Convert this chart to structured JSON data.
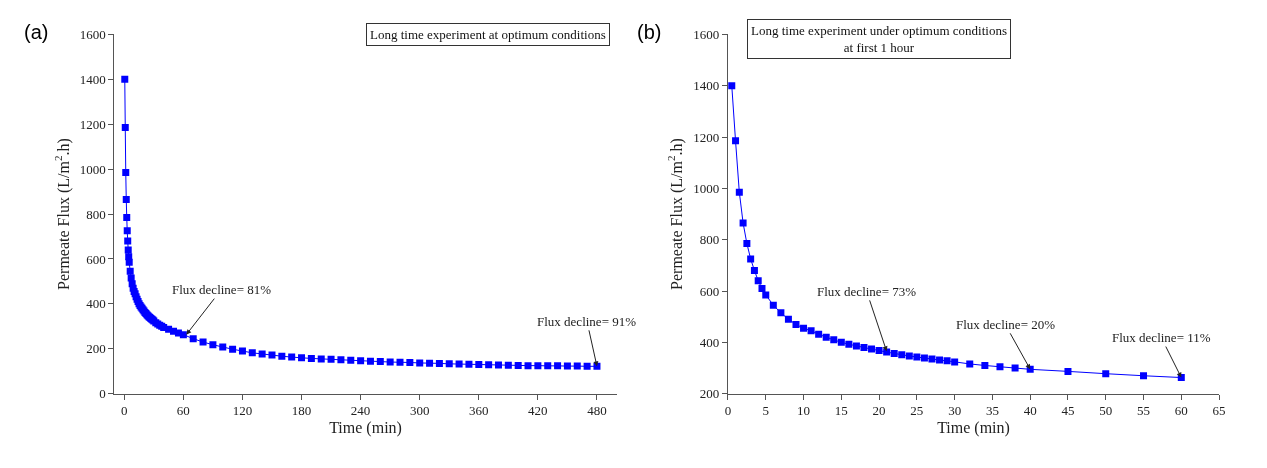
{
  "chart_data": [
    {
      "type": "line",
      "title": "Long time experiment at optimum conditions",
      "xlabel": "Time (min)",
      "ylabel": "Permeate Flux (L/m$^{2}$.h)",
      "x": [
        0.5,
        1,
        1.5,
        2,
        2.5,
        3,
        3.5,
        4,
        4.5,
        5,
        6,
        7,
        8,
        9,
        10,
        11,
        12,
        13,
        14,
        15,
        16,
        17,
        18,
        19,
        20,
        21,
        22,
        23,
        24,
        25,
        26,
        27,
        28,
        29,
        30,
        32,
        34,
        36,
        38,
        40,
        45,
        50,
        55,
        60,
        70,
        80,
        90,
        100,
        110,
        120,
        130,
        140,
        150,
        160,
        170,
        180,
        190,
        200,
        210,
        220,
        230,
        240,
        250,
        260,
        270,
        280,
        290,
        300,
        310,
        320,
        330,
        340,
        350,
        360,
        370,
        380,
        390,
        400,
        410,
        420,
        430,
        440,
        450,
        460,
        470,
        480
      ],
      "series": [
        {
          "color": "#0000ff",
          "values": [
            1400,
            1185,
            985,
            865,
            785,
            725,
            680,
            640,
            610,
            585,
            545,
            515,
            490,
            470,
            455,
            445,
            432,
            420,
            410,
            400,
            393,
            386,
            380,
            374,
            368,
            362,
            357,
            352,
            347,
            343,
            339,
            335,
            331,
            328,
            324,
            316,
            310,
            305,
            300,
            295,
            287,
            278,
            270,
            263,
            245,
            230,
            218,
            208,
            198,
            190,
            182,
            177,
            172,
            167,
            163,
            160,
            157,
            155,
            153,
            151,
            149,
            147,
            145,
            143,
            141,
            140,
            139,
            137,
            136,
            135,
            133,
            132,
            131,
            130,
            129,
            128,
            127,
            126,
            125,
            125,
            124,
            124,
            123,
            123,
            122,
            122
          ]
        }
      ],
      "xlim": [
        -10,
        500
      ],
      "ylim": [
        0,
        1600
      ],
      "xticks": [
        0,
        60,
        120,
        180,
        240,
        300,
        360,
        420,
        480
      ],
      "yticks": [
        0,
        200,
        400,
        600,
        800,
        1000,
        1200,
        1400,
        1600
      ],
      "marker": "square",
      "line_style": "solid",
      "annotations": [
        "(a)",
        {
          "text": "Flux decline= 81%",
          "x": 63,
          "y": 263
        },
        {
          "text": "Flux decline= 91%",
          "x": 480,
          "y": 122
        }
      ]
    },
    {
      "type": "line",
      "title": "Long time experiment under optimum conditions\nat first 1 hour",
      "xlabel": "Time (min)",
      "ylabel": "Permeate Flux (L/m$^{2}$.h)",
      "x": [
        0.5,
        1,
        1.5,
        2,
        2.5,
        3,
        3.5,
        4,
        4.5,
        5,
        6,
        7,
        8,
        9,
        10,
        11,
        12,
        13,
        14,
        15,
        16,
        17,
        18,
        19,
        20,
        21,
        22,
        23,
        24,
        25,
        26,
        27,
        28,
        29,
        30,
        32,
        34,
        36,
        38,
        40,
        45,
        50,
        55,
        60
      ],
      "series": [
        {
          "color": "#0000ff",
          "values": [
            1400,
            1185,
            985,
            865,
            785,
            725,
            680,
            640,
            610,
            585,
            545,
            515,
            490,
            470,
            455,
            445,
            432,
            420,
            410,
            400,
            393,
            386,
            380,
            374,
            368,
            362,
            357,
            352,
            347,
            343,
            339,
            335,
            331,
            328,
            324,
            316,
            310,
            305,
            300,
            295,
            287,
            278,
            270,
            263
          ]
        }
      ],
      "xlim": [
        0,
        65
      ],
      "ylim": [
        200,
        1600
      ],
      "xticks": [
        0,
        5,
        10,
        15,
        20,
        25,
        30,
        35,
        40,
        45,
        50,
        55,
        60,
        65
      ],
      "yticks": [
        200,
        400,
        600,
        800,
        1000,
        1200,
        1400,
        1600
      ],
      "marker": "square",
      "line_style": "solid",
      "annotations": [
        "(b)",
        {
          "text": "Flux decline= 73%",
          "x": 21,
          "y": 365
        },
        {
          "text": "Flux decline= 20%",
          "x": 40,
          "y": 295
        },
        {
          "text": "Flux decline= 11%",
          "x": 60,
          "y": 263
        }
      ]
    }
  ]
}
